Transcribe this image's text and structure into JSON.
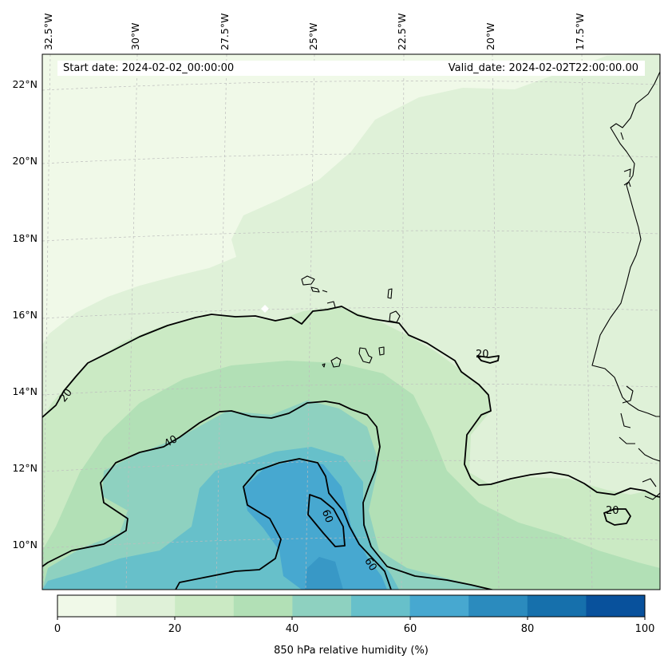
{
  "map": {
    "start_date": "Start date: 2024-02-02_00:00:00",
    "valid_date": "Valid_date: 2024-02-02T22:00:00.00",
    "lon_labels": [
      "32.5°W",
      "30°W",
      "27.5°W",
      "25°W",
      "22.5°W",
      "20°W",
      "17.5°W"
    ],
    "lat_labels": [
      "22°N",
      "20°N",
      "18°N",
      "16°N",
      "14°N",
      "12°N",
      "10°N"
    ],
    "contour_labels": [
      "20",
      "40",
      "60",
      "60",
      "20",
      "20"
    ]
  },
  "colorbar": {
    "title": "850 hPa relative humidity (%)",
    "ticks": [
      "0",
      "20",
      "40",
      "60",
      "80",
      "100"
    ],
    "levels": [
      0,
      10,
      20,
      30,
      40,
      50,
      60,
      70,
      80,
      90,
      100
    ],
    "colors": [
      "#f0f9e8",
      "#dff1d8",
      "#cbeac4",
      "#b2e0b6",
      "#8ed1c0",
      "#67c0ca",
      "#47a8d0",
      "#2b8bbe",
      "#1670ac",
      "#08519c"
    ]
  },
  "colors": {
    "coast": "#000000",
    "contour": "#000000",
    "grid": "#bdbdbd"
  }
}
